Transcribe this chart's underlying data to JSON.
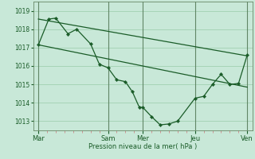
{
  "bg_color": "#c8e8d8",
  "grid_color": "#99ccaa",
  "line_color": "#1a5c28",
  "marker_color": "#1a5c28",
  "xtick_labels": [
    "Mar",
    "Sam",
    "Mer",
    "Jeu",
    "Ven"
  ],
  "xtick_positions": [
    0,
    4,
    6,
    9,
    12
  ],
  "xlabel": "Pression niveau de la mer( hPa )",
  "ylim": [
    1012.5,
    1019.5
  ],
  "yticks": [
    1013,
    1014,
    1015,
    1016,
    1017,
    1018,
    1019
  ],
  "line1_x": [
    0,
    12
  ],
  "line1_y": [
    1018.55,
    1016.55
  ],
  "line2_x": [
    0,
    12
  ],
  "line2_y": [
    1017.15,
    1014.85
  ],
  "main_x": [
    0,
    0.6,
    1.0,
    1.7,
    2.2,
    3.0,
    3.5,
    4.0,
    4.5,
    5.0,
    5.4,
    5.8,
    6.0,
    6.5,
    7.0,
    7.5,
    8.0,
    9.0,
    9.5,
    10.0,
    10.5,
    11.0,
    11.5,
    12.0
  ],
  "main_y": [
    1017.15,
    1018.55,
    1018.6,
    1017.75,
    1018.0,
    1017.2,
    1016.1,
    1015.9,
    1015.25,
    1015.15,
    1014.6,
    1013.75,
    1013.75,
    1013.25,
    1012.8,
    1012.85,
    1013.0,
    1014.25,
    1014.35,
    1015.0,
    1015.55,
    1015.0,
    1015.05,
    1016.6
  ],
  "vline_x": [
    0,
    4,
    6,
    9,
    12
  ],
  "vline_color": "#446644",
  "minor_tick_color": "#cc8888"
}
